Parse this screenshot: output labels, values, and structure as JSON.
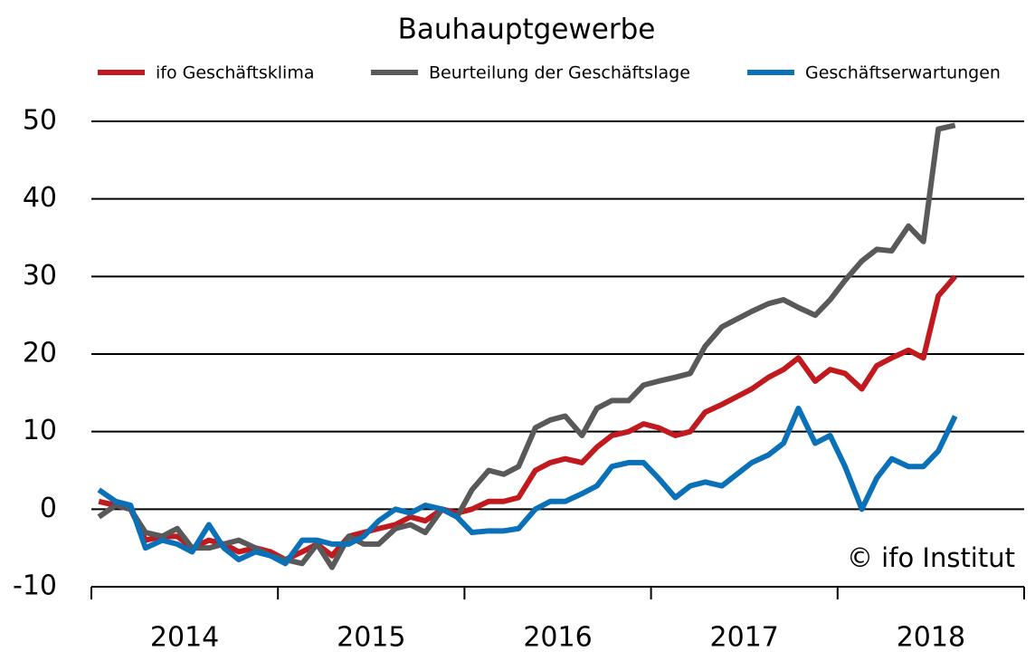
{
  "chart_data": {
    "type": "line",
    "title": "Bauhauptgewerbe",
    "annotation": "© ifo Institut",
    "x": [
      2014.04,
      2014.13,
      2014.21,
      2014.29,
      2014.38,
      2014.46,
      2014.54,
      2014.63,
      2014.71,
      2014.79,
      2014.88,
      2014.96,
      2015.04,
      2015.13,
      2015.21,
      2015.29,
      2015.38,
      2015.46,
      2015.54,
      2015.63,
      2015.71,
      2015.79,
      2015.88,
      2015.96,
      2016.04,
      2016.13,
      2016.21,
      2016.29,
      2016.38,
      2016.46,
      2016.54,
      2016.63,
      2016.71,
      2016.79,
      2016.88,
      2016.96,
      2017.04,
      2017.13,
      2017.21,
      2017.29,
      2017.38,
      2017.46,
      2017.54,
      2017.63,
      2017.71,
      2017.79,
      2017.88,
      2017.96,
      2018.04,
      2018.13,
      2018.21,
      2018.29,
      2018.38,
      2018.46,
      2018.54,
      2018.63
    ],
    "series": [
      {
        "name": "ifo Geschäftsklima",
        "color": "#c0191e",
        "values": [
          1,
          0.5,
          0,
          -4,
          -3.5,
          -3.5,
          -5,
          -4,
          -4.5,
          -5.5,
          -5,
          -5.5,
          -6.5,
          -5.5,
          -4.5,
          -6,
          -3.5,
          -3,
          -2.5,
          -2,
          -1,
          -1.5,
          0,
          -0.5,
          0,
          1,
          1,
          1.5,
          5,
          6,
          6.5,
          6,
          8,
          9.5,
          10,
          11,
          10.5,
          9.5,
          10,
          12.5,
          13.5,
          14.5,
          15.5,
          17,
          18,
          19.5,
          16.5,
          18,
          17.5,
          15.5,
          18.5,
          19.5,
          20.5,
          19.5,
          27.5,
          30
        ]
      },
      {
        "name": "Beurteilung der Geschäftslage",
        "color": "#595959",
        "values": [
          -1,
          0.5,
          0,
          -3,
          -3.5,
          -2.5,
          -5,
          -5,
          -4.5,
          -4,
          -5,
          -6,
          -6.5,
          -7,
          -4.5,
          -7.5,
          -3.5,
          -4.5,
          -4.5,
          -2.5,
          -2,
          -3,
          0,
          -1,
          2.5,
          5,
          4.5,
          5.5,
          10.5,
          11.5,
          12,
          9.5,
          13,
          14,
          14,
          16,
          16.5,
          17,
          17.5,
          21,
          23.5,
          24.5,
          25.5,
          26.5,
          27,
          26,
          25,
          27,
          29.5,
          32,
          33.5,
          33.3,
          36.5,
          34.5,
          49,
          49.5
        ]
      },
      {
        "name": "Geschäftserwartungen",
        "color": "#0a70b8",
        "values": [
          2.5,
          1,
          0.5,
          -5,
          -4,
          -4.5,
          -5.5,
          -2,
          -5,
          -6.5,
          -5.5,
          -6,
          -7,
          -4,
          -4,
          -4.5,
          -4.5,
          -3.5,
          -1.5,
          0,
          -0.5,
          0.5,
          0,
          -1,
          -3,
          -2.8,
          -2.8,
          -2.5,
          0,
          1,
          1,
          2,
          3,
          5.5,
          6,
          6,
          4,
          1.5,
          3,
          3.5,
          3,
          4.5,
          6,
          7,
          8.5,
          13,
          8.5,
          9.5,
          5.5,
          0,
          4,
          6.5,
          5.5,
          5.5,
          7.5,
          12
        ]
      }
    ],
    "xlim": [
      2014,
      2019
    ],
    "xticks": [
      2014,
      2015,
      2016,
      2017,
      2018,
      2019
    ],
    "xtick_labels": [
      {
        "value": 2014.5,
        "label": "2014"
      },
      {
        "value": 2015.5,
        "label": "2015"
      },
      {
        "value": 2016.5,
        "label": "2016"
      },
      {
        "value": 2017.5,
        "label": "2017"
      },
      {
        "value": 2018.5,
        "label": "2018"
      }
    ],
    "ylim": [
      -10,
      50
    ],
    "yticks": [
      -10,
      0,
      10,
      20,
      30,
      40,
      50
    ],
    "grid": true
  }
}
